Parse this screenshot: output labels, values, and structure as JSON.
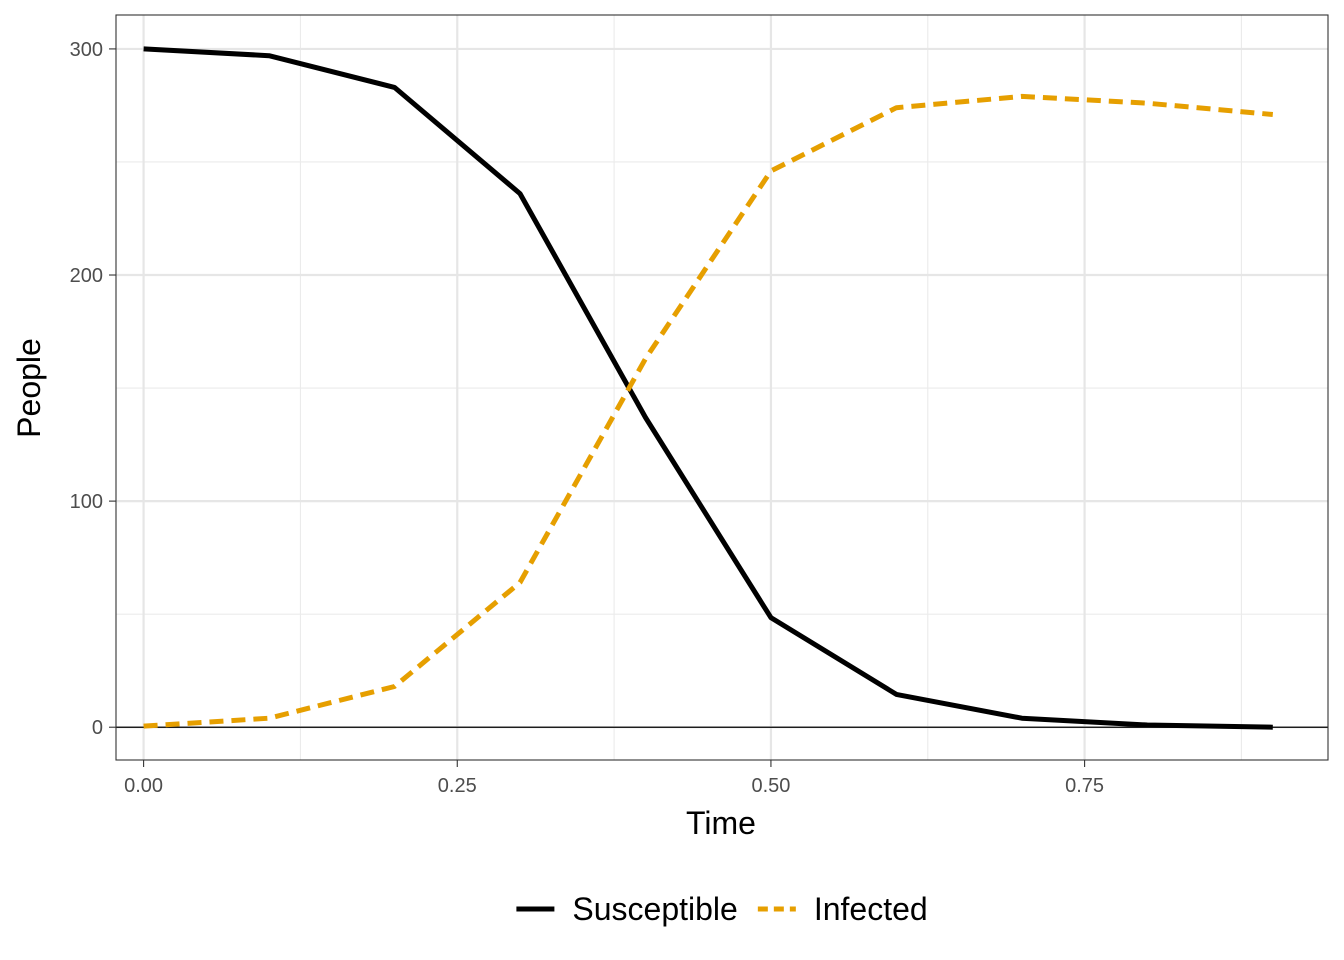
{
  "chart_data": {
    "type": "line",
    "title": "",
    "xlabel": "Time",
    "ylabel": "People",
    "xlim": [
      -0.022,
      0.944
    ],
    "ylim": [
      -14.5,
      315
    ],
    "x_ticks": [
      0.0,
      0.25,
      0.5,
      0.75
    ],
    "x_tick_labels": [
      "0.00",
      "0.25",
      "0.50",
      "0.75"
    ],
    "y_ticks": [
      0,
      100,
      200,
      300
    ],
    "y_tick_labels": [
      "0",
      "100",
      "200",
      "300"
    ],
    "x_minor_ticks": [
      0.125,
      0.375,
      0.625,
      0.875
    ],
    "y_minor_ticks": [
      50,
      150,
      250
    ],
    "grid": true,
    "hline_y": 0,
    "legend_position": "bottom",
    "x": [
      0.0,
      0.1,
      0.2,
      0.3,
      0.4,
      0.5,
      0.6,
      0.7,
      0.8,
      0.9
    ],
    "series": [
      {
        "name": "Susceptible",
        "color": "#000000",
        "dash": "solid",
        "values": [
          300,
          297,
          283,
          236,
          137,
          48.5,
          14.5,
          4,
          1,
          0
        ]
      },
      {
        "name": "Infected",
        "color": "#E69F00",
        "dash": "dashed",
        "values": [
          0.5,
          4,
          18,
          64,
          163,
          246,
          274,
          279,
          276,
          271
        ]
      }
    ]
  }
}
